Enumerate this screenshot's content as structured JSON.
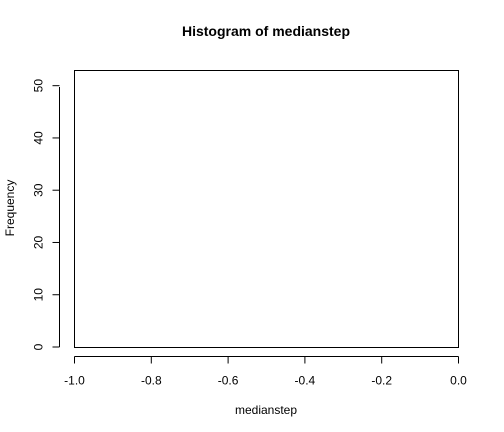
{
  "chart_data": {
    "type": "bar",
    "title": "Histogram of medianstep",
    "xlabel": "medianstep",
    "ylabel": "Frequency",
    "xlim": [
      -1.0,
      0.0
    ],
    "ylim": [
      0,
      53
    ],
    "x_ticks": [
      -1.0,
      -0.8,
      -0.6,
      -0.4,
      -0.2,
      0.0
    ],
    "x_tick_labels": [
      "-1.0",
      "-0.8",
      "-0.6",
      "-0.4",
      "-0.2",
      "0.0"
    ],
    "y_ticks": [
      0,
      10,
      20,
      30,
      40,
      50
    ],
    "y_tick_labels": [
      "0",
      "10",
      "20",
      "30",
      "40",
      "50"
    ],
    "bins": [],
    "grid": false,
    "legend": "none"
  }
}
